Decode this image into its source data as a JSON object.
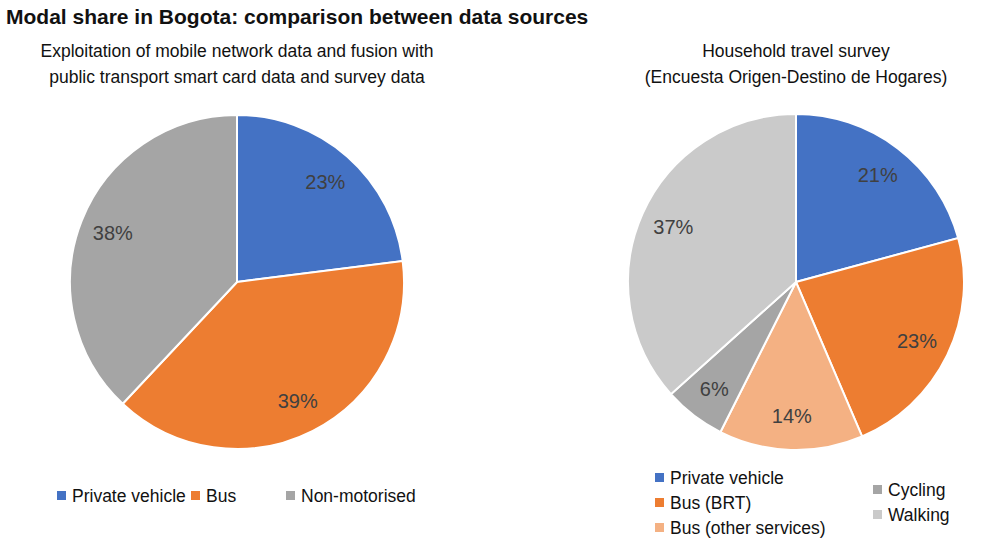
{
  "title": "Modal share in Bogota: comparison between data sources",
  "chart_data": [
    {
      "type": "pie",
      "title": "Exploitation of mobile network data and fusion with\npublic transport smart card data and survey data",
      "categories": [
        "Private vehicle",
        "Bus",
        "Non-motorised"
      ],
      "values": [
        23,
        39,
        38
      ],
      "value_labels": [
        "23%",
        "39%",
        "38%"
      ],
      "colors": [
        "#4472c4",
        "#ed7d31",
        "#a5a5a5"
      ],
      "data_labels": true,
      "legend": "bottom"
    },
    {
      "type": "pie",
      "title": "Household travel survey\n(Encuesta Origen-Destino de Hogares)",
      "categories": [
        "Private vehicle",
        "Bus (BRT)",
        "Bus (other services)",
        "Cycling",
        "Walking"
      ],
      "values": [
        21,
        23,
        14,
        6,
        37
      ],
      "value_labels": [
        "21%",
        "23%",
        "14%",
        "6%",
        "37%"
      ],
      "colors": [
        "#4472c4",
        "#ed7d31",
        "#f4b183",
        "#a5a5a5",
        "#cacaca"
      ],
      "data_labels": true,
      "legend": "bottom"
    }
  ]
}
